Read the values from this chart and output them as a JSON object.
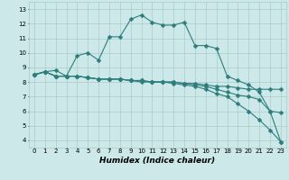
{
  "xlabel": "Humidex (Indice chaleur)",
  "background_color": "#cce8e8",
  "grid_color": "#aacccc",
  "line_color": "#2d7d7d",
  "xlim": [
    -0.5,
    23.5
  ],
  "ylim": [
    3.5,
    13.5
  ],
  "xticks": [
    0,
    1,
    2,
    3,
    4,
    5,
    6,
    7,
    8,
    9,
    10,
    11,
    12,
    13,
    14,
    15,
    16,
    17,
    18,
    19,
    20,
    21,
    22,
    23
  ],
  "yticks": [
    4,
    5,
    6,
    7,
    8,
    9,
    10,
    11,
    12,
    13
  ],
  "line1_x": [
    0,
    1,
    2,
    3,
    4,
    5,
    6,
    7,
    8,
    9,
    10,
    11,
    12,
    13,
    14,
    15,
    16,
    17,
    18,
    19,
    20,
    21,
    22,
    23
  ],
  "line1_y": [
    8.5,
    8.7,
    8.4,
    8.4,
    8.4,
    8.3,
    8.2,
    8.2,
    8.2,
    8.1,
    8.1,
    8.0,
    8.0,
    8.0,
    7.9,
    7.9,
    7.8,
    7.7,
    7.7,
    7.6,
    7.5,
    7.5,
    7.5,
    7.5
  ],
  "line2_x": [
    0,
    1,
    2,
    3,
    4,
    5,
    6,
    7,
    8,
    9,
    10,
    11,
    12,
    13,
    14,
    15,
    16,
    17,
    18,
    19,
    20,
    21,
    22,
    23
  ],
  "line2_y": [
    8.5,
    8.7,
    8.4,
    8.4,
    8.4,
    8.3,
    8.2,
    8.2,
    8.2,
    8.1,
    8.1,
    8.0,
    8.0,
    8.0,
    7.9,
    7.8,
    7.7,
    7.5,
    7.3,
    7.1,
    7.0,
    6.8,
    6.0,
    5.9
  ],
  "line3_x": [
    0,
    1,
    2,
    3,
    4,
    5,
    6,
    7,
    8,
    9,
    10,
    11,
    12,
    13,
    14,
    15,
    16,
    17,
    18,
    19,
    20,
    21,
    22,
    23
  ],
  "line3_y": [
    8.5,
    8.7,
    8.4,
    8.4,
    8.4,
    8.3,
    8.2,
    8.2,
    8.2,
    8.1,
    8.0,
    8.0,
    8.0,
    7.9,
    7.8,
    7.7,
    7.5,
    7.2,
    7.0,
    6.5,
    6.0,
    5.4,
    4.7,
    3.9
  ],
  "line4_x": [
    0,
    1,
    2,
    3,
    4,
    5,
    6,
    7,
    8,
    9,
    10,
    11,
    12,
    13,
    14,
    15,
    16,
    17,
    18,
    19,
    20,
    21,
    22,
    23
  ],
  "line4_y": [
    8.5,
    8.7,
    8.8,
    8.4,
    9.8,
    10.0,
    9.5,
    11.1,
    11.1,
    12.3,
    12.6,
    12.1,
    11.9,
    11.9,
    12.1,
    10.5,
    10.5,
    10.3,
    8.4,
    8.1,
    7.8,
    7.3,
    6.0,
    3.9
  ]
}
